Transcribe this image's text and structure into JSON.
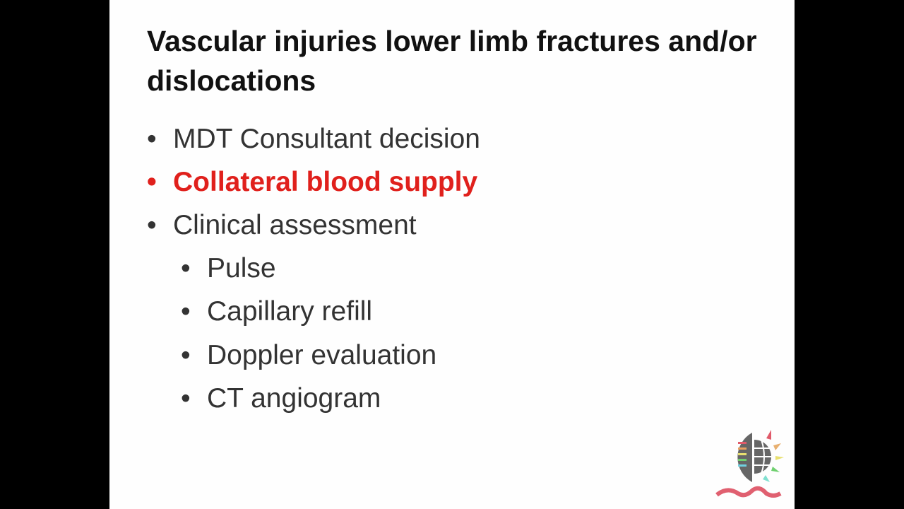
{
  "slide": {
    "title": "Vascular injuries lower limb fractures and/or dislocations",
    "bullets": [
      {
        "text": "MDT Consultant decision",
        "level": 1
      },
      {
        "text": "Collateral blood supply",
        "level": 1,
        "highlight": true
      },
      {
        "text": "Clinical assessment",
        "level": 1
      },
      {
        "text": "Pulse",
        "level": 2
      },
      {
        "text": "Capillary refill",
        "level": 2
      },
      {
        "text": "Doppler evaluation",
        "level": 2
      },
      {
        "text": "CT angiogram",
        "level": 2
      }
    ],
    "bullet_glyph": "•",
    "highlight_color": "#e0201c",
    "logo": "university-globe-book-logo"
  }
}
